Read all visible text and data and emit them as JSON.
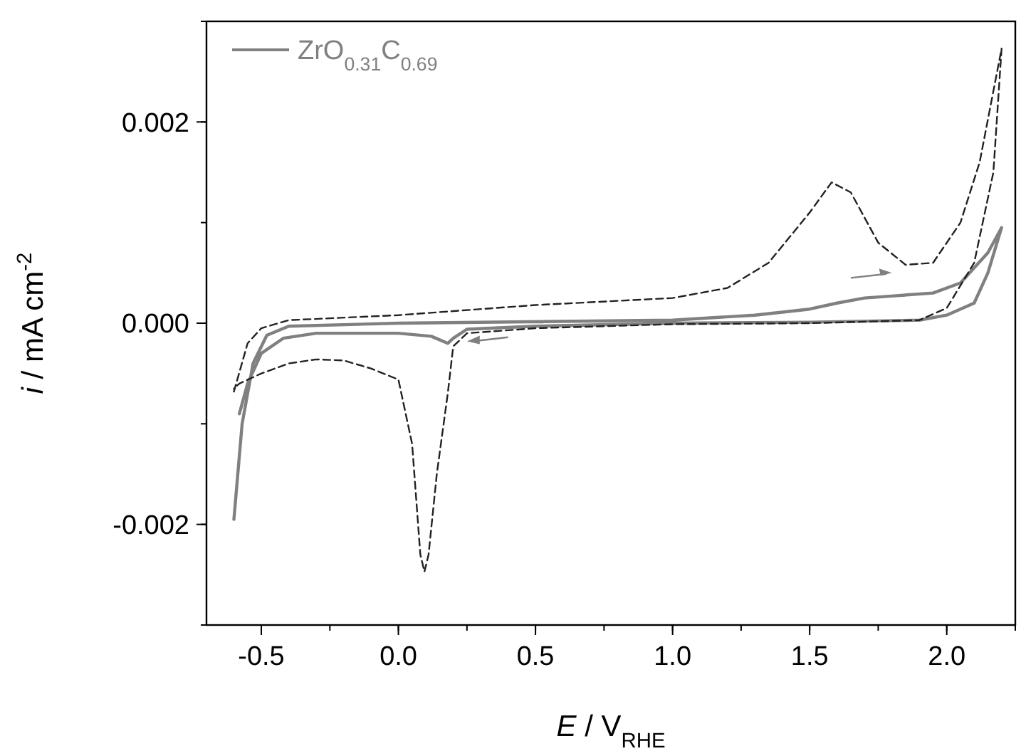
{
  "chart_data": {
    "type": "line",
    "xlabel": "E / V$_{RHE}$",
    "ylabel": "i / mA cm$^{-2}$",
    "xlim": [
      -0.7,
      2.25
    ],
    "xticks": [
      -0.5,
      "0.0",
      0.5,
      "1.0",
      1.5,
      "2.0"
    ],
    "ylim": [
      -0.003,
      0.003
    ],
    "yticks": [
      {
        "value": -0.002,
        "label": "-0.002"
      },
      {
        "value": 0,
        "label": "0.000"
      },
      {
        "value": 0.002,
        "label": "0.002"
      }
    ],
    "legend": "top left",
    "grid": false,
    "marker": "none",
    "series": [
      {
        "name": "ZrO$_{0.31}$C$_{0.69}$",
        "color": "#808080",
        "line_style": "solid",
        "x": [
          -0.6,
          -0.57,
          -0.53,
          -0.48,
          -0.4,
          0,
          1.0,
          1.3,
          1.5,
          1.6,
          1.7,
          1.8,
          1.95,
          2.05,
          2.15,
          2.2,
          2.15,
          2.1,
          2.0,
          1.9,
          1.5,
          1.0,
          0.5,
          0.25,
          0.2,
          0.18,
          0.12,
          0.0,
          -0.3,
          -0.42,
          -0.5,
          -0.55,
          -0.58
        ],
        "values": [
          -0.00195,
          -0.001,
          -0.0004,
          -0.00012,
          -3e-05,
          0.0,
          3e-05,
          8e-05,
          0.00014,
          0.0002,
          0.00025,
          0.00027,
          0.0003,
          0.0004,
          0.0007,
          0.00095,
          0.0005,
          0.0002,
          8e-05,
          3e-05,
          1e-05,
          0.0,
          -3e-05,
          -6e-05,
          -0.00015,
          -0.0002,
          -0.00013,
          -0.0001,
          -0.0001,
          -0.00015,
          -0.0003,
          -0.0006,
          -0.0009
        ]
      },
      {
        "color": "#222222",
        "line_style": "dashed",
        "x": [
          -0.6,
          -0.55,
          -0.5,
          -0.4,
          0,
          0.5,
          1.0,
          1.2,
          1.35,
          1.5,
          1.58,
          1.65,
          1.75,
          1.85,
          1.95,
          2.05,
          2.12,
          2.2,
          2.17,
          2.1,
          2.0,
          1.9,
          1.5,
          1.0,
          0.5,
          0.25,
          0.2,
          0.18,
          0.14,
          0.11,
          0.095,
          0.08,
          0.05,
          0.0,
          -0.1,
          -0.2,
          -0.3,
          -0.4,
          -0.5,
          -0.58,
          -0.6
        ],
        "values": [
          -0.00068,
          -0.0002,
          -5e-05,
          3e-05,
          8e-05,
          0.00018,
          0.00025,
          0.00035,
          0.0006,
          0.0011,
          0.0014,
          0.0013,
          0.0008,
          0.00058,
          0.0006,
          0.001,
          0.0016,
          0.00273,
          0.0015,
          0.0006,
          0.00015,
          3e-05,
          0.0,
          -1e-05,
          -5e-05,
          -0.0001,
          -0.00023,
          -0.0007,
          -0.0015,
          -0.0023,
          -0.00247,
          -0.0023,
          -0.0012,
          -0.00056,
          -0.00045,
          -0.00037,
          -0.00036,
          -0.0004,
          -0.0005,
          -0.0006,
          -0.00065
        ]
      }
    ]
  }
}
